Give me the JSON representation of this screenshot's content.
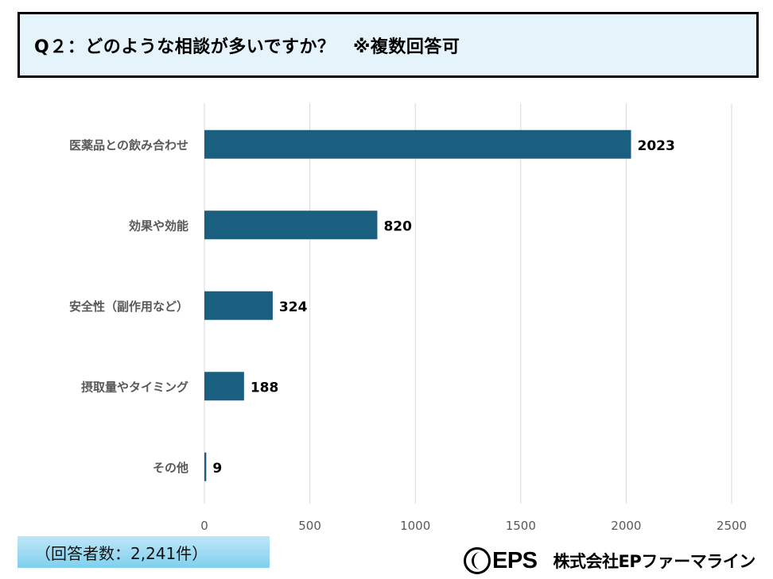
{
  "title": "Q２：どのような相談が多いですか？　※複数回答可",
  "respondents_note": "（回答者数：2,241件）",
  "logo": {
    "mark_icon": "eps-circle-logo-icon",
    "name": "EPS",
    "company": "株式会社EPファーマライン"
  },
  "colors": {
    "bar": "#1a5f80",
    "title_bg": "#e5f4fb",
    "grid": "#d9d9d9",
    "note_bg": "#8fd4ef"
  },
  "chart_data": {
    "type": "bar",
    "orientation": "horizontal",
    "categories": [
      "医薬品との飲み合わせ",
      "効果や効能",
      "安全性（副作用など）",
      "摂取量やタイミング",
      "その他"
    ],
    "values": [
      2023,
      820,
      324,
      188,
      9
    ],
    "xlim": [
      0,
      2500
    ],
    "xticks": [
      "0",
      "500",
      "1000",
      "1500",
      "2000",
      "2500"
    ],
    "grid": true,
    "data_labels": true
  }
}
